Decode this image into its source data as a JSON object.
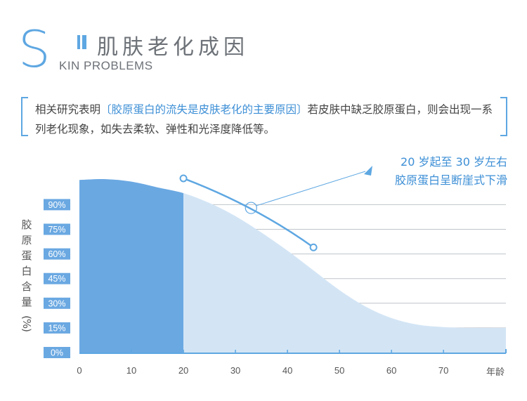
{
  "header": {
    "big_letter": "S",
    "title_cn": "肌肤老化成因",
    "title_en": "KIN PROBLEMS"
  },
  "quote": {
    "before": "相关研究表明",
    "highlight": "〔胶原蛋白的流失是皮肤老化的主要原因〕",
    "after": "若皮肤中缺乏胶原蛋白，则会出现一系列老化现象，如失去柔软、弹性和光泽度降低等。"
  },
  "annotation": {
    "line1": "20 岁起至 30 岁左右",
    "line2": "胶原蛋白呈断崖式下滑"
  },
  "colors": {
    "accent": "#5ea7e2",
    "text_accent": "#3d8fd6",
    "area_light": "#d3e5f5",
    "area_dark": "#6aa8e2",
    "grid": "#bfc4c9",
    "tick_bg": "#6aa8e2"
  },
  "chart_data": {
    "type": "area",
    "ylabel": "胶原蛋白含量(%)",
    "xlabel": "年龄",
    "x_ticks": [
      "0",
      "10",
      "20",
      "30",
      "40",
      "50",
      "60",
      "70"
    ],
    "y_ticks": [
      "0%",
      "15%",
      "30%",
      "45%",
      "60%",
      "75%",
      "90%"
    ],
    "xlim": [
      0,
      82
    ],
    "ylim": [
      0,
      100
    ],
    "x": [
      0,
      5,
      10,
      15,
      20,
      25,
      30,
      35,
      40,
      45,
      50,
      55,
      60,
      65,
      70,
      75,
      82
    ],
    "y": [
      105,
      105.5,
      104,
      100.5,
      97,
      91,
      83,
      73,
      62,
      50,
      38,
      28,
      21,
      17,
      15.5,
      15,
      15
    ],
    "highlight_range": [
      0,
      20
    ],
    "trend_arrow": {
      "x": [
        20,
        45
      ],
      "y": [
        106,
        64
      ]
    },
    "marker": {
      "x": 33,
      "y": 88
    }
  }
}
